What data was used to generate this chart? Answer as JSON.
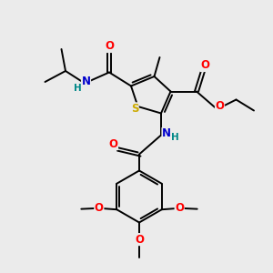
{
  "background_color": "#ebebeb",
  "fig_size": [
    3.0,
    3.0
  ],
  "dpi": 100,
  "atom_colors": {
    "C": "#000000",
    "N": "#0000cc",
    "O": "#ff0000",
    "S": "#ccaa00",
    "H": "#008888"
  },
  "bond_color": "#000000",
  "bond_lw": 1.4,
  "font_size": 8.5,
  "font_size_h": 7.5
}
